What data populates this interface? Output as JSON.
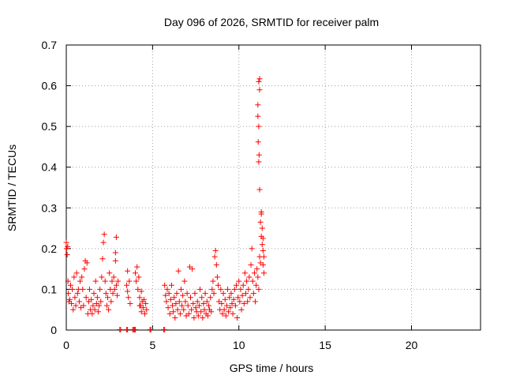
{
  "chart_data": {
    "type": "scatter",
    "title": "Day 096 of 2026, SRMTID for receiver palm",
    "xlabel": "GPS time / hours",
    "ylabel": "SRMTID / TECUs",
    "xlim": [
      0,
      24
    ],
    "ylim": [
      0,
      0.7
    ],
    "xticks": [
      0,
      5,
      10,
      15,
      20
    ],
    "yticks": [
      0,
      0.1,
      0.2,
      0.3,
      0.4,
      0.5,
      0.6,
      0.7
    ],
    "grid": true,
    "marker": "+",
    "color": "#ff0000",
    "series": [
      {
        "name": "SRMTID",
        "points": [
          [
            0.0,
            0.215
          ],
          [
            0.02,
            0.2
          ],
          [
            0.05,
            0.185
          ],
          [
            0.08,
            0.205
          ],
          [
            0.1,
            0.12
          ],
          [
            0.12,
            0.09
          ],
          [
            0.15,
            0.07
          ],
          [
            0.2,
            0.075
          ],
          [
            0.25,
            0.11
          ],
          [
            0.3,
            0.065
          ],
          [
            0.35,
            0.1
          ],
          [
            0.4,
            0.05
          ],
          [
            0.45,
            0.13
          ],
          [
            0.5,
            0.08
          ],
          [
            0.55,
            0.06
          ],
          [
            0.6,
            0.14
          ],
          [
            0.65,
            0.09
          ],
          [
            0.7,
            0.1
          ],
          [
            0.75,
            0.07
          ],
          [
            0.8,
            0.12
          ],
          [
            0.85,
            0.055
          ],
          [
            0.9,
            0.13
          ],
          [
            0.95,
            0.1
          ],
          [
            1.0,
            0.06
          ],
          [
            1.05,
            0.15
          ],
          [
            1.1,
            0.17
          ],
          [
            1.15,
            0.08
          ],
          [
            1.2,
            0.165
          ],
          [
            1.25,
            0.04
          ],
          [
            1.3,
            0.07
          ],
          [
            1.35,
            0.1
          ],
          [
            1.4,
            0.05
          ],
          [
            1.45,
            0.075
          ],
          [
            1.5,
            0.04
          ],
          [
            1.55,
            0.06
          ],
          [
            1.6,
            0.09
          ],
          [
            1.65,
            0.05
          ],
          [
            1.7,
            0.12
          ],
          [
            1.75,
            0.065
          ],
          [
            1.8,
            0.08
          ],
          [
            1.85,
            0.045
          ],
          [
            1.9,
            0.06
          ],
          [
            1.95,
            0.1
          ],
          [
            2.0,
            0.07
          ],
          [
            2.05,
            0.13
          ],
          [
            2.1,
            0.175
          ],
          [
            2.15,
            0.215
          ],
          [
            2.2,
            0.235
          ],
          [
            2.25,
            0.12
          ],
          [
            2.3,
            0.09
          ],
          [
            2.35,
            0.06
          ],
          [
            2.4,
            0.08
          ],
          [
            2.45,
            0.05
          ],
          [
            2.5,
            0.14
          ],
          [
            2.55,
            0.1
          ],
          [
            2.6,
            0.07
          ],
          [
            2.65,
            0.12
          ],
          [
            2.7,
            0.09
          ],
          [
            2.75,
            0.13
          ],
          [
            2.8,
            0.1
          ],
          [
            2.85,
            0.17
          ],
          [
            2.9,
            0.11
          ],
          [
            2.95,
            0.085
          ],
          [
            2.85,
            0.19
          ],
          [
            3.0,
            0.12
          ],
          [
            2.9,
            0.228
          ],
          [
            3.1,
            0.0
          ],
          [
            3.15,
            0.0
          ],
          [
            3.5,
            0.0
          ],
          [
            3.55,
            0.0
          ],
          [
            3.5,
            0.11
          ],
          [
            3.55,
            0.095
          ],
          [
            3.6,
            0.08
          ],
          [
            3.65,
            0.12
          ],
          [
            3.7,
            0.065
          ],
          [
            3.55,
            0.145
          ],
          [
            3.85,
            0.0
          ],
          [
            3.9,
            0.0
          ],
          [
            3.95,
            0.0
          ],
          [
            4.0,
            0.0
          ],
          [
            4.0,
            0.14
          ],
          [
            4.05,
            0.12
          ],
          [
            4.1,
            0.155
          ],
          [
            4.15,
            0.1
          ],
          [
            4.2,
            0.13
          ],
          [
            4.25,
            0.08
          ],
          [
            4.3,
            0.06
          ],
          [
            4.35,
            0.045
          ],
          [
            4.4,
            0.07
          ],
          [
            4.45,
            0.055
          ],
          [
            4.5,
            0.075
          ],
          [
            4.55,
            0.04
          ],
          [
            4.6,
            0.065
          ],
          [
            4.65,
            0.05
          ],
          [
            4.25,
            0.06
          ],
          [
            4.35,
            0.095
          ],
          [
            4.85,
            0.0
          ],
          [
            4.9,
            0.0
          ],
          [
            5.65,
            0.0
          ],
          [
            5.7,
            0.0
          ],
          [
            5.7,
            0.11
          ],
          [
            5.75,
            0.085
          ],
          [
            5.8,
            0.07
          ],
          [
            5.85,
            0.1
          ],
          [
            5.9,
            0.055
          ],
          [
            5.95,
            0.09
          ],
          [
            6.0,
            0.04
          ],
          [
            6.05,
            0.075
          ],
          [
            6.1,
            0.11
          ],
          [
            6.15,
            0.06
          ],
          [
            6.2,
            0.045
          ],
          [
            6.25,
            0.08
          ],
          [
            6.3,
            0.03
          ],
          [
            6.35,
            0.065
          ],
          [
            6.4,
            0.09
          ],
          [
            6.45,
            0.05
          ],
          [
            6.5,
            0.145
          ],
          [
            6.55,
            0.07
          ],
          [
            6.6,
            0.04
          ],
          [
            6.65,
            0.1
          ],
          [
            6.7,
            0.06
          ],
          [
            6.75,
            0.085
          ],
          [
            6.8,
            0.05
          ],
          [
            6.85,
            0.12
          ],
          [
            6.9,
            0.07
          ],
          [
            6.95,
            0.035
          ],
          [
            7.0,
            0.09
          ],
          [
            7.05,
            0.06
          ],
          [
            7.1,
            0.04
          ],
          [
            7.15,
            0.155
          ],
          [
            7.2,
            0.08
          ],
          [
            7.25,
            0.05
          ],
          [
            7.3,
            0.15
          ],
          [
            7.35,
            0.065
          ],
          [
            7.4,
            0.03
          ],
          [
            7.45,
            0.09
          ],
          [
            7.5,
            0.055
          ],
          [
            7.55,
            0.045
          ],
          [
            7.6,
            0.07
          ],
          [
            7.65,
            0.035
          ],
          [
            7.7,
            0.06
          ],
          [
            7.75,
            0.1
          ],
          [
            7.8,
            0.045
          ],
          [
            7.85,
            0.08
          ],
          [
            7.9,
            0.03
          ],
          [
            7.95,
            0.065
          ],
          [
            8.0,
            0.05
          ],
          [
            8.05,
            0.09
          ],
          [
            8.1,
            0.04
          ],
          [
            8.15,
            0.07
          ],
          [
            8.2,
            0.035
          ],
          [
            8.25,
            0.06
          ],
          [
            8.3,
            0.05
          ],
          [
            8.35,
            0.08
          ],
          [
            8.4,
            0.045
          ],
          [
            8.45,
            0.1
          ],
          [
            8.5,
            0.12
          ],
          [
            8.55,
            0.09
          ],
          [
            8.6,
            0.18
          ],
          [
            8.65,
            0.195
          ],
          [
            8.7,
            0.16
          ],
          [
            8.75,
            0.13
          ],
          [
            8.8,
            0.11
          ],
          [
            8.85,
            0.07
          ],
          [
            8.9,
            0.05
          ],
          [
            8.95,
            0.1
          ],
          [
            9.0,
            0.065
          ],
          [
            9.05,
            0.04
          ],
          [
            9.1,
            0.09
          ],
          [
            9.15,
            0.05
          ],
          [
            9.2,
            0.075
          ],
          [
            9.25,
            0.035
          ],
          [
            9.3,
            0.06
          ],
          [
            9.35,
            0.1
          ],
          [
            9.4,
            0.045
          ],
          [
            9.45,
            0.08
          ],
          [
            9.5,
            0.055
          ],
          [
            9.55,
            0.09
          ],
          [
            9.6,
            0.065
          ],
          [
            9.65,
            0.04
          ],
          [
            9.7,
            0.075
          ],
          [
            9.75,
            0.1
          ],
          [
            9.8,
            0.06
          ],
          [
            9.85,
            0.11
          ],
          [
            9.9,
            0.03
          ],
          [
            9.95,
            0.08
          ],
          [
            10.0,
            0.12
          ],
          [
            10.05,
            0.07
          ],
          [
            10.1,
            0.1
          ],
          [
            10.15,
            0.05
          ],
          [
            10.2,
            0.085
          ],
          [
            10.25,
            0.11
          ],
          [
            10.3,
            0.065
          ],
          [
            10.35,
            0.14
          ],
          [
            10.4,
            0.09
          ],
          [
            10.45,
            0.12
          ],
          [
            10.5,
            0.07
          ],
          [
            10.55,
            0.1
          ],
          [
            10.6,
            0.13
          ],
          [
            10.65,
            0.08
          ],
          [
            10.7,
            0.16
          ],
          [
            10.75,
            0.2
          ],
          [
            10.8,
            0.12
          ],
          [
            10.85,
            0.09
          ],
          [
            10.9,
            0.14
          ],
          [
            10.95,
            0.07
          ],
          [
            11.0,
            0.11
          ],
          [
            11.05,
            0.15
          ],
          [
            11.1,
            0.13
          ],
          [
            11.15,
            0.1
          ],
          [
            11.2,
            0.18
          ],
          [
            11.25,
            0.165
          ],
          [
            11.2,
            0.345
          ],
          [
            11.15,
            0.413
          ],
          [
            11.17,
            0.43
          ],
          [
            11.12,
            0.462
          ],
          [
            11.15,
            0.5
          ],
          [
            11.1,
            0.525
          ],
          [
            11.1,
            0.553
          ],
          [
            11.2,
            0.59
          ],
          [
            11.15,
            0.61
          ],
          [
            11.2,
            0.617
          ],
          [
            11.3,
            0.285
          ],
          [
            11.25,
            0.265
          ],
          [
            11.35,
            0.25
          ],
          [
            11.3,
            0.23
          ],
          [
            11.4,
            0.225
          ],
          [
            11.35,
            0.21
          ],
          [
            11.4,
            0.195
          ],
          [
            11.45,
            0.18
          ],
          [
            11.4,
            0.16
          ],
          [
            11.45,
            0.14
          ],
          [
            11.3,
            0.29
          ]
        ]
      }
    ]
  }
}
